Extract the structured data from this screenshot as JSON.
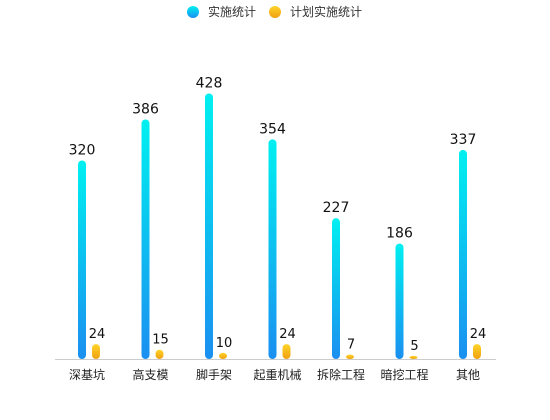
{
  "chart_data": {
    "type": "bar",
    "categories": [
      "深基坑",
      "高支模",
      "脚手架",
      "起重机械",
      "拆除工程",
      "暗挖工程",
      "其他"
    ],
    "series": [
      {
        "name": "实施统计",
        "values": [
          320,
          386,
          428,
          354,
          227,
          186,
          337
        ],
        "color_top": "#00f0f0",
        "color_bottom": "#1a8ff0"
      },
      {
        "name": "计划实施统计",
        "values": [
          24,
          15,
          10,
          24,
          7,
          5,
          24
        ],
        "color_top": "#ffd42a",
        "color_bottom": "#f0a010"
      }
    ],
    "ylim": [
      0,
      440
    ],
    "grid": false,
    "legend_position": "top-center",
    "title": "",
    "xlabel": "",
    "ylabel": ""
  }
}
